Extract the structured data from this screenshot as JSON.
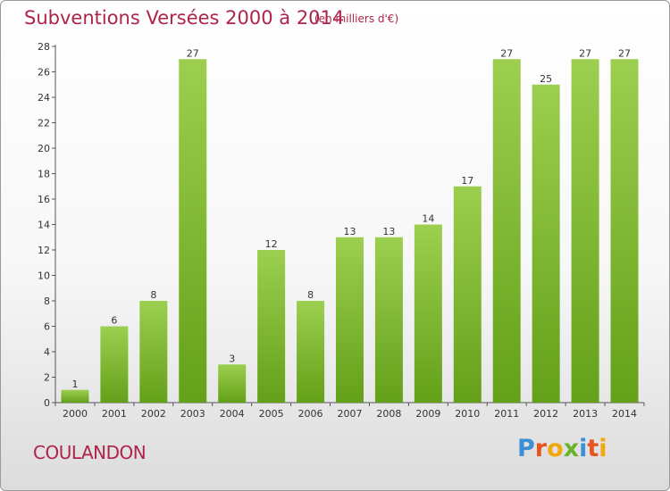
{
  "header": {
    "title": "Subventions Versées 2000 à 2014",
    "subtitle": "(en milliers d'€)"
  },
  "footer": {
    "commune": "COULANDON",
    "logo_letters": [
      "P",
      "r",
      "o",
      "x",
      "i",
      "t",
      "i"
    ],
    "logo_colors": [
      "#3b8fd4",
      "#e8531f",
      "#f2a70c",
      "#6ab42c",
      "#3b8fd4",
      "#e8531f",
      "#f2a70c"
    ]
  },
  "chart_data": {
    "type": "bar",
    "title": "Subventions Versées 2000 à 2014",
    "subtitle": "(en milliers d'€)",
    "categories": [
      "2000",
      "2001",
      "2002",
      "2003",
      "2004",
      "2005",
      "2006",
      "2007",
      "2008",
      "2009",
      "2010",
      "2011",
      "2012",
      "2013",
      "2014"
    ],
    "values": [
      1,
      6,
      8,
      27,
      3,
      12,
      8,
      13,
      13,
      14,
      17,
      27,
      25,
      27,
      27
    ],
    "ylim": [
      0,
      28
    ],
    "yticks": [
      0,
      2,
      4,
      6,
      8,
      10,
      12,
      14,
      16,
      18,
      20,
      22,
      24,
      26,
      28
    ],
    "grid": false,
    "bar_color_top": "#9ccf4f",
    "bar_color_bottom": "#64a019"
  }
}
